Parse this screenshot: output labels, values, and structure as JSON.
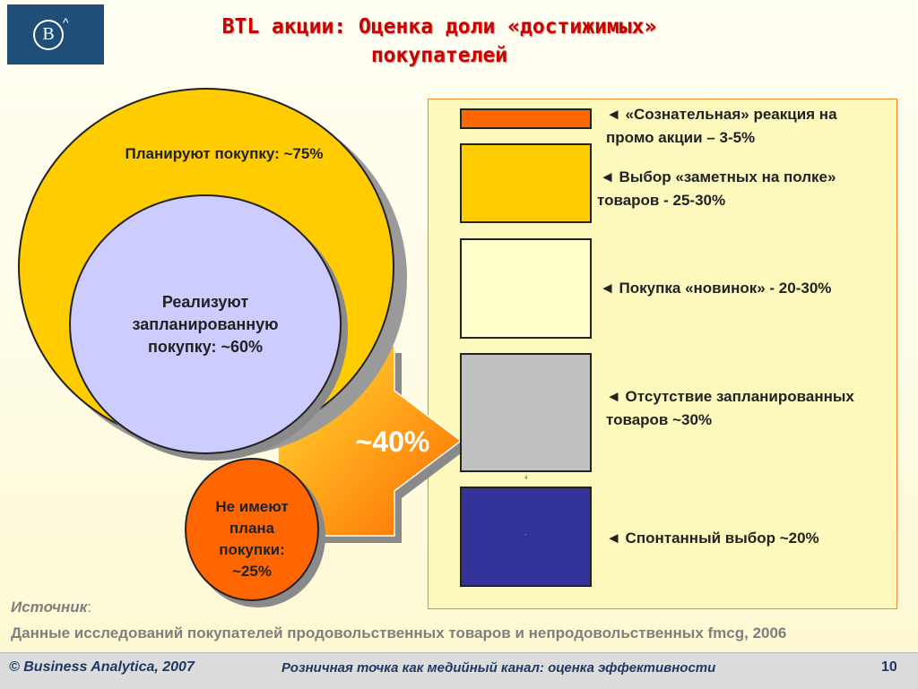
{
  "title": {
    "line1": "BTL акции: Оценка доли «достижимых»",
    "line2": "покупателей"
  },
  "logo": {
    "letter": "B",
    "hat": "^"
  },
  "circles": {
    "plan": "Планируют покупку: ~75%",
    "realize_l1": "Реализуют",
    "realize_l2": "запланированную",
    "realize_l3": "покупку: ~60%",
    "noplan_l1": "Не имеют",
    "noplan_l2": "плана",
    "noplan_l3": "покупки:",
    "noplan_l4": "~25%"
  },
  "arrow": {
    "label": "~40%"
  },
  "segments": [
    {
      "l1": "◄ «Сознательная» реакция на",
      "l2": "промо акции – 3-5%",
      "color": "#ff6600"
    },
    {
      "l1": "◄ Выбор «заметных на полке»",
      "l2": "товаров - 25-30%",
      "color": "#ffcc00"
    },
    {
      "l1": "◄ Покупка «новинок» - 20-30%",
      "l2": "",
      "color": "#ffffcc"
    },
    {
      "l1": "◄ Отсутствие запланированных",
      "l2": "товаров ~30%",
      "color": "#c0c0c0"
    },
    {
      "l1": "◄ Спонтанный выбор ~20%",
      "l2": "",
      "color": "#333399"
    }
  ],
  "tiny_marks": {
    "grey": "4",
    "blue": "-"
  },
  "source": {
    "label": "Источник",
    "colon": ":",
    "text": "Данные исследований покупателей продовольственных товаров и непродовольственных fmcg, 2006"
  },
  "footer": {
    "copyright": "© Business Analytica, 2007",
    "caption": "Розничная точка как медийный канал: оценка эффективности",
    "page": "10"
  }
}
